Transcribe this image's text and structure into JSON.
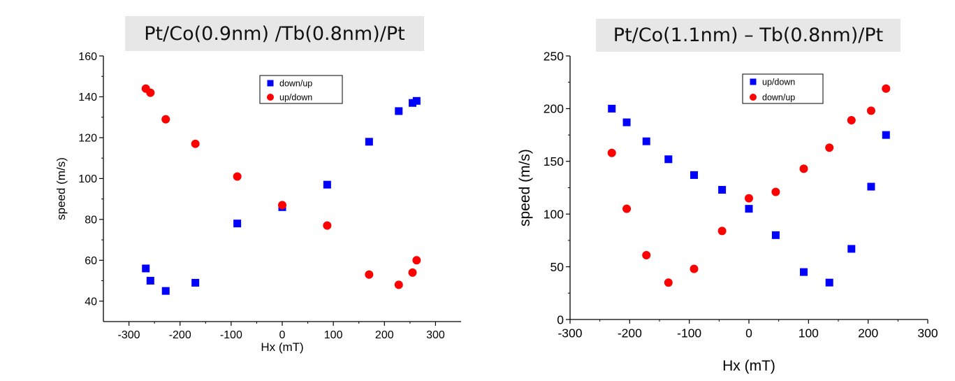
{
  "chart_data": [
    {
      "type": "scatter",
      "title": "Pt/Co(0.9nm) /Tb(0.8nm)/Pt",
      "xlabel": "Hx (mT)",
      "ylabel": "speed (m/s)",
      "xlim": [
        -350,
        350
      ],
      "ylim": [
        30,
        160
      ],
      "xticks": [
        -300,
        -200,
        -100,
        0,
        100,
        200,
        300
      ],
      "yticks": [
        40,
        60,
        80,
        100,
        120,
        140,
        160
      ],
      "legend_position": "top-center",
      "series": [
        {
          "name": "down/up",
          "marker": "square",
          "color": "#0000ff",
          "x": [
            -267,
            -258,
            -228,
            -170,
            -88,
            0,
            88,
            170,
            228,
            255,
            263
          ],
          "y": [
            56,
            50,
            45,
            49,
            78,
            86,
            97,
            118,
            133,
            137,
            138
          ]
        },
        {
          "name": "up/down",
          "marker": "circle",
          "color": "#ff0000",
          "x": [
            -267,
            -258,
            -228,
            -170,
            -88,
            0,
            88,
            170,
            228,
            255,
            263
          ],
          "y": [
            144,
            142,
            129,
            117,
            101,
            87,
            77,
            53,
            48,
            54,
            60
          ]
        }
      ]
    },
    {
      "type": "scatter",
      "title": "Pt/Co(1.1nm) – Tb(0.8nm)/Pt",
      "xlabel": "Hx (mT)",
      "ylabel": "speed (m/s)",
      "xlim": [
        -300,
        300
      ],
      "ylim": [
        0,
        250
      ],
      "xticks": [
        -300,
        -200,
        -100,
        0,
        100,
        200,
        300
      ],
      "yticks": [
        0,
        50,
        100,
        150,
        200,
        250
      ],
      "legend_position": "top-center",
      "series": [
        {
          "name": "up/down",
          "marker": "square",
          "color": "#0000ff",
          "x": [
            -230,
            -205,
            -172,
            -135,
            -92,
            -45,
            0,
            45,
            92,
            135,
            172,
            205,
            230
          ],
          "y": [
            200,
            187,
            169,
            152,
            137,
            123,
            105,
            80,
            45,
            35,
            67,
            126,
            175
          ]
        },
        {
          "name": "down/up",
          "marker": "circle",
          "color": "#ff0000",
          "x": [
            -230,
            -205,
            -172,
            -135,
            -92,
            -45,
            0,
            45,
            92,
            135,
            172,
            205,
            230
          ],
          "y": [
            158,
            105,
            61,
            35,
            48,
            84,
            115,
            121,
            143,
            163,
            189,
            198,
            219
          ]
        }
      ]
    }
  ]
}
